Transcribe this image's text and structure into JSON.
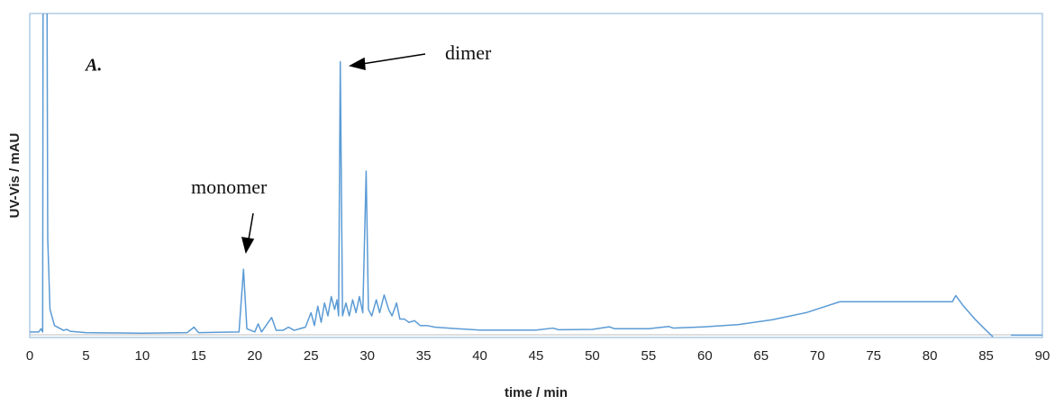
{
  "chart_data": {
    "type": "line",
    "xlabel": "time / min",
    "ylabel": "UV-Vis / mAU",
    "annotations": [
      "A.",
      "dimer",
      "monomer"
    ],
    "x": [
      0,
      0.8,
      1.0,
      1.15,
      1.2,
      1.5,
      1.6,
      1.8,
      2.2,
      3,
      3.3,
      3.6,
      5,
      10,
      14,
      14.6,
      15,
      18.6,
      19.0,
      19.3,
      20,
      20.3,
      20.6,
      21.5,
      21.9,
      22.5,
      23,
      23.5,
      24,
      24.5,
      25,
      25.3,
      25.6,
      25.9,
      26.2,
      26.5,
      26.8,
      27.1,
      27.3,
      27.45,
      27.6,
      27.8,
      28.1,
      28.4,
      28.7,
      29,
      29.3,
      29.6,
      29.9,
      30.1,
      30.4,
      30.8,
      31.1,
      31.5,
      31.9,
      32.2,
      32.6,
      32.9,
      33.3,
      33.7,
      34.2,
      34.7,
      35.3,
      36,
      38,
      40,
      45,
      46.5,
      47,
      50,
      51.5,
      52,
      55,
      56.8,
      57.2,
      60,
      63,
      66,
      69,
      72,
      82,
      82.3,
      83,
      84,
      85,
      85.6,
      86.5,
      87.2,
      90
    ],
    "values": [
      1,
      1,
      2,
      1,
      150,
      150,
      30,
      8,
      3,
      1.5,
      1.8,
      1.2,
      0.8,
      0.6,
      0.8,
      2.5,
      0.8,
      1,
      20.5,
      2,
      1,
      3.5,
      1,
      5.5,
      1.5,
      1.5,
      2.5,
      1.5,
      2,
      2.5,
      7,
      3,
      9,
      4,
      10,
      6,
      12,
      8,
      11,
      6,
      85,
      6,
      10,
      6,
      11,
      7,
      12,
      7,
      51,
      8,
      6,
      11,
      7,
      12.5,
      8,
      6,
      10,
      5,
      5,
      4,
      4.5,
      3,
      3,
      2.5,
      2,
      1.6,
      1.6,
      2.2,
      1.7,
      1.8,
      2.6,
      2,
      2,
      2.7,
      2.2,
      2.6,
      3.3,
      4.8,
      7,
      10.4,
      10.4,
      12.3,
      9,
      5,
      1.5,
      -0.5,
      null,
      0,
      0
    ],
    "color": "#5b9bd5",
    "xlim": [
      0,
      90
    ],
    "ylim": [
      -1,
      100
    ],
    "xticks": [
      0,
      5,
      10,
      15,
      20,
      25,
      30,
      35,
      40,
      45,
      50,
      55,
      60,
      65,
      70,
      75,
      80,
      85,
      90
    ]
  }
}
